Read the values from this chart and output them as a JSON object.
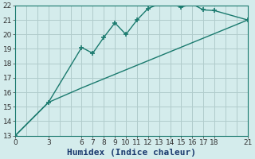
{
  "xlabel": "Humidex (Indice chaleur)",
  "ylabel": "",
  "background_color": "#d4ecec",
  "line_color": "#1a7a6e",
  "grid_color": "#b0cccc",
  "xlim": [
    0,
    21
  ],
  "ylim": [
    13,
    22
  ],
  "yticks": [
    13,
    14,
    15,
    16,
    17,
    18,
    19,
    20,
    21,
    22
  ],
  "xtick_labels": [
    0,
    3,
    6,
    7,
    8,
    9,
    10,
    11,
    12,
    13,
    14,
    15,
    16,
    17,
    18,
    21
  ],
  "line1_x": [
    0,
    3,
    6,
    7,
    8,
    9,
    10,
    11,
    12,
    13,
    14,
    15,
    16,
    17,
    18,
    21
  ],
  "line1_y": [
    13,
    15.3,
    19.1,
    18.7,
    19.8,
    20.8,
    20.0,
    21.0,
    21.8,
    22.1,
    22.1,
    21.9,
    22.1,
    21.7,
    21.65,
    21.0
  ],
  "line2_x": [
    0,
    3,
    6,
    21
  ],
  "line2_y": [
    13,
    15.3,
    16.3,
    21.0
  ],
  "marker": "+",
  "markersize": 5,
  "markeredgewidth": 1.2,
  "linewidth": 1.0,
  "xlabel_fontsize": 8,
  "tick_fontsize": 6.5
}
